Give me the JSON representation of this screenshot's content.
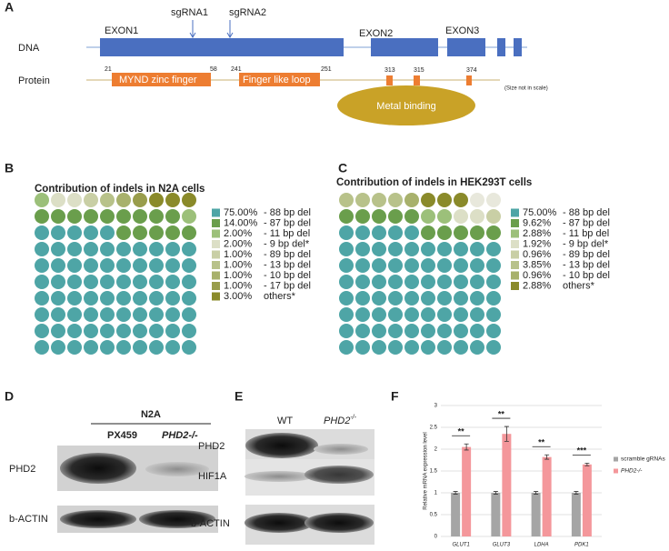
{
  "panel_labels": [
    "A",
    "B",
    "C",
    "D",
    "E",
    "F"
  ],
  "panel_a": {
    "dna_label": "DNA",
    "protein_label": "Protein",
    "exons": [
      "EXON1",
      "EXON2",
      "EXON3"
    ],
    "sgrnas": [
      "sgRNA1",
      "sgRNA2"
    ],
    "domains": [
      "MYND zinc finger",
      "Finger like loop",
      "Metal binding"
    ],
    "positions": [
      "21",
      "58",
      "241",
      "251",
      "313",
      "315",
      "374"
    ],
    "note": "(Size not in scale)"
  },
  "panel_d": {
    "cell_line": "N2A",
    "lanes": [
      "PX459",
      "PHD2-/-"
    ],
    "rows": [
      "PHD2",
      "b-ACTIN"
    ]
  },
  "panel_e": {
    "lane_wt": "WT",
    "lane_gene": "PHD2",
    "lane_sup": "-/-",
    "rows": [
      "PHD2",
      "HIF1A",
      "b-ACTIN"
    ]
  },
  "chart_data": [
    {
      "type": "waffle",
      "title": "Contribution of indels in N2A cells",
      "categories": [
        "- 88 bp del",
        "- 87 bp del",
        "- 11 bp del",
        "- 9 bp del*",
        "- 89 bp del",
        "- 13 bp del",
        "- 10 bp del",
        "- 17 bp del",
        "others*"
      ],
      "values": [
        75,
        14,
        2,
        2,
        1,
        1,
        1,
        1,
        3
      ],
      "value_labels": [
        "75.00%",
        "14.00%",
        "2.00%",
        "2.00%",
        "1.00%",
        "1.00%",
        "1.00%",
        "1.00%",
        "3.00%"
      ],
      "colors": [
        "#4ea5a6",
        "#6a9e4c",
        "#9cc07a",
        "#dcdfc6",
        "#c9cfa5",
        "#b8c28a",
        "#a8b16c",
        "#999d4c",
        "#8a8a2a"
      ]
    },
    {
      "type": "waffle",
      "title": "Contribution of indels in HEK293T cells",
      "categories": [
        "- 88 bp del",
        "- 87 bp del",
        "- 11 bp del",
        "- 9 bp del*",
        "- 89 bp del",
        "- 13 bp del",
        "- 10 bp del",
        "others*"
      ],
      "values": [
        75,
        9.62,
        2.88,
        1.92,
        0.96,
        3.85,
        0.96,
        2.88
      ],
      "value_labels": [
        "75.00%",
        "9.62%",
        "2.88%",
        "1.92%",
        "0.96%",
        "3.85%",
        "0.96%",
        "2.88%"
      ],
      "colors": [
        "#4ea5a6",
        "#6a9e4c",
        "#9cc07a",
        "#dcdfc6",
        "#c9cfa5",
        "#b8c28a",
        "#a8b16c",
        "#8a8a2a"
      ]
    },
    {
      "type": "bar",
      "y_label": "Relative mRNA expression level",
      "categories": [
        "GLUT1",
        "GLUT3",
        "LDHA",
        "PDK1"
      ],
      "series": [
        {
          "name": "scramble gRNAs",
          "color": "#a5a5a5",
          "values": [
            1,
            1,
            1,
            1
          ],
          "errors": [
            0.03,
            0.03,
            0.03,
            0.03
          ]
        },
        {
          "name": "PHD2-/-",
          "color": "#f4979b",
          "values": [
            2.05,
            2.35,
            1.82,
            1.65
          ],
          "errors": [
            0.07,
            0.17,
            0.05,
            0.03
          ]
        }
      ],
      "significance": [
        "**",
        "**",
        "**",
        "***"
      ],
      "ylim": [
        0,
        3
      ],
      "yticks": [
        0,
        0.5,
        1,
        1.5,
        2,
        2.5,
        3
      ],
      "grid": true
    }
  ]
}
